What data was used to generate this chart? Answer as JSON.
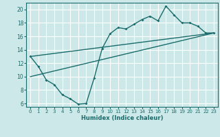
{
  "xlabel": "Humidex (Indice chaleur)",
  "bg_color": "#cde8e8",
  "line_color": "#1a6b6b",
  "grid_color": "#ffffff",
  "xlim": [
    -0.5,
    23.5
  ],
  "ylim": [
    5.5,
    21.0
  ],
  "xticks": [
    0,
    1,
    2,
    3,
    4,
    5,
    6,
    7,
    8,
    9,
    10,
    11,
    12,
    13,
    14,
    15,
    16,
    17,
    18,
    19,
    20,
    21,
    22,
    23
  ],
  "yticks": [
    6,
    8,
    10,
    12,
    14,
    16,
    18,
    20
  ],
  "line1_x": [
    0,
    1,
    2,
    3,
    4,
    5,
    6,
    7,
    8,
    9,
    10,
    11,
    12,
    13,
    14,
    15,
    16,
    17,
    18,
    19,
    20,
    21,
    22,
    23
  ],
  "line1_y": [
    13.0,
    11.5,
    9.5,
    8.8,
    7.3,
    6.7,
    5.9,
    6.0,
    9.8,
    14.2,
    16.4,
    17.3,
    17.1,
    17.8,
    18.5,
    19.0,
    18.3,
    20.5,
    19.2,
    18.0,
    18.0,
    17.5,
    16.5,
    16.5
  ],
  "line2_x": [
    0,
    23
  ],
  "line2_y": [
    13.0,
    16.5
  ],
  "line3_x": [
    0,
    23
  ],
  "line3_y": [
    10.0,
    16.5
  ]
}
